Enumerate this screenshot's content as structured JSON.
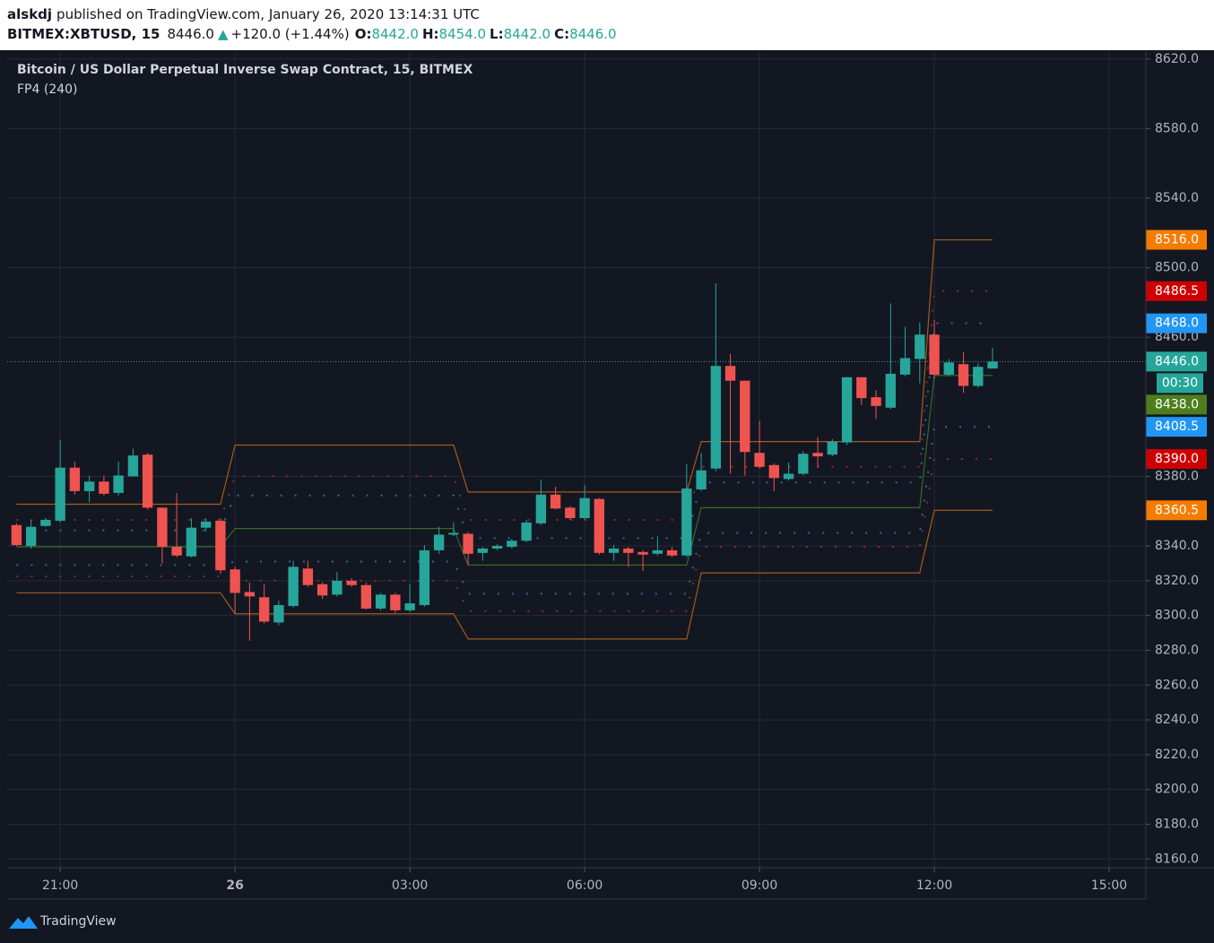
{
  "header": {
    "user": "alskdj",
    "published": "published on TradingView.com, January 26, 2020 13:14:31 UTC",
    "symbol": "BITMEX:XBTUSD, 15",
    "price": "8446.0",
    "arrow": "▲",
    "change": "+120.0 (+1.44%)",
    "o_label": "O:",
    "open": "8442.0",
    "h_label": "H:",
    "high": "8454.0",
    "l_label": "L:",
    "low": "8442.0",
    "c_label": "C:",
    "close": "8446.0"
  },
  "footer": {
    "brand": "TradingView"
  },
  "chart_data": {
    "type": "candlestick",
    "title": "Bitcoin / US Dollar Perpetual Inverse Swap Contract, 15, BITMEX",
    "subtitle": "FP4 (240)",
    "up_color": "#26a69a",
    "down_color": "#ef5350",
    "grid": true,
    "x": [
      20.25,
      20.5,
      20.75,
      21,
      21.25,
      21.5,
      21.75,
      22,
      22.25,
      22.5,
      22.75,
      23,
      23.25,
      23.5,
      23.75,
      24,
      24.25,
      24.5,
      24.75,
      25,
      25.25,
      25.5,
      25.75,
      26,
      26.25,
      26.5,
      26.75,
      27,
      27.25,
      27.5,
      27.75,
      28,
      28.25,
      28.5,
      28.75,
      29,
      29.25,
      29.5,
      29.75,
      30,
      30.25,
      30.5,
      30.75,
      31,
      31.25,
      31.5,
      31.75,
      32,
      32.25,
      32.5,
      32.75,
      33,
      33.25,
      33.5,
      33.75,
      34,
      34.25,
      34.5,
      34.75,
      35,
      35.25,
      35.5,
      35.75,
      36,
      36.25,
      36.5,
      36.75,
      37
    ],
    "open": [
      8352,
      8340,
      8351.5,
      8354.5,
      8385,
      8371.5,
      8377,
      8370.5,
      8380,
      8392.5,
      8362,
      8339.5,
      8334,
      8350.5,
      8354.5,
      8326.5,
      8313.5,
      8310.5,
      8296,
      8305.5,
      8327,
      8318,
      8312,
      8320,
      8317.5,
      8304,
      8312,
      8303,
      8306,
      8337.5,
      8346.5,
      8347,
      8336,
      8338.5,
      8339.5,
      8343,
      8353,
      8369.5,
      8362,
      8356,
      8367,
      8336,
      8338.5,
      8336.5,
      8335.5,
      8337.5,
      8334.5,
      8372.5,
      8384.5,
      8443.5,
      8435,
      8393.5,
      8386.5,
      8378.5,
      8381.5,
      8393.5,
      8392.5,
      8399.5,
      8437,
      8425.5,
      8419.5,
      8438.5,
      8447.5,
      8461.5,
      8438.5,
      8444.5,
      8432,
      8442
    ],
    "high": [
      8353,
      8355,
      8356,
      8401,
      8388.5,
      8380.5,
      8380.5,
      8388.5,
      8396,
      8393.5,
      8362,
      8370.5,
      8356,
      8356,
      8356,
      8328,
      8319,
      8318,
      8308.5,
      8331.5,
      8331.5,
      8319,
      8325,
      8321.5,
      8319,
      8313,
      8313,
      8318,
      8340.5,
      8351,
      8353.5,
      8348,
      8339.5,
      8341,
      8344,
      8355,
      8378,
      8374,
      8363,
      8375,
      8367.5,
      8340.5,
      8339.5,
      8337.5,
      8345.5,
      8339.5,
      8387,
      8393.5,
      8491,
      8450.5,
      8435,
      8412,
      8387.5,
      8388,
      8394.5,
      8402.5,
      8401.5,
      8437,
      8437,
      8429.5,
      8479.5,
      8466,
      8468.5,
      8470,
      8447.5,
      8451.5,
      8445,
      8454
    ],
    "low": [
      8340,
      8338.5,
      8351,
      8353.5,
      8369.5,
      8365,
      8369,
      8369,
      8380,
      8361,
      8330,
      8333.5,
      8333.5,
      8348.5,
      8324,
      8301,
      8285.5,
      8295.5,
      8294.5,
      8304.5,
      8316.5,
      8309.5,
      8311,
      8316.5,
      8303.5,
      8303,
      8301.5,
      8302,
      8305,
      8335.5,
      8345.5,
      8329,
      8331.5,
      8337.5,
      8338.5,
      8342,
      8352,
      8361,
      8355,
      8355,
      8335,
      8331.5,
      8328,
      8325.5,
      8334.5,
      8333.5,
      8333.5,
      8371.5,
      8383,
      8381.5,
      8380.5,
      8384.5,
      8371.5,
      8377.5,
      8380.5,
      8385,
      8391.5,
      8398,
      8421,
      8413,
      8418.5,
      8437.5,
      8433.5,
      8436,
      8437.5,
      8428,
      8431,
      8442
    ],
    "close": [
      8340.5,
      8351,
      8355,
      8385,
      8371.5,
      8377,
      8370,
      8380.5,
      8392,
      8362,
      8339.5,
      8334.5,
      8350.5,
      8354,
      8326,
      8313,
      8311,
      8296.5,
      8306,
      8328,
      8317.5,
      8311.5,
      8320,
      8317.5,
      8304,
      8312,
      8303,
      8307,
      8337.5,
      8346.5,
      8347.5,
      8335.5,
      8338.5,
      8340,
      8343,
      8353.5,
      8369.5,
      8361.5,
      8356,
      8367.5,
      8336,
      8338.5,
      8336,
      8335,
      8337.5,
      8334.5,
      8373,
      8383.5,
      8443.5,
      8435,
      8394,
      8385.5,
      8379,
      8381.5,
      8393,
      8391.5,
      8400,
      8437,
      8425,
      8420.5,
      8439,
      8448,
      8461.5,
      8438.5,
      8445.5,
      8432,
      8443,
      8446
    ],
    "series": [
      {
        "color": "#a65a1c",
        "style": "solid",
        "values": [
          8364,
          8364,
          8364,
          8364,
          8364,
          8364,
          8364,
          8364,
          8364,
          8364,
          8364,
          8364,
          8364,
          8364,
          8364,
          8398,
          8398,
          8398,
          8398,
          8398,
          8398,
          8398,
          8398,
          8398,
          8398,
          8398,
          8398,
          8398,
          8398,
          8398,
          8398,
          8371,
          8371,
          8371,
          8371,
          8371,
          8371,
          8371,
          8371,
          8371,
          8371,
          8371,
          8371,
          8371,
          8371,
          8371,
          8371,
          8400,
          8400,
          8400,
          8400,
          8400,
          8400,
          8400,
          8400,
          8400,
          8400,
          8400,
          8400,
          8400,
          8400,
          8400,
          8400,
          8516,
          8516,
          8516,
          8516,
          8516
        ]
      },
      {
        "color": "#8c2b2b",
        "style": "dotted",
        "values": [
          8355,
          8355,
          8355,
          8355,
          8355,
          8355,
          8355,
          8355,
          8355,
          8355,
          8355,
          8355,
          8355,
          8355,
          8355,
          8380,
          8380,
          8380,
          8380,
          8380,
          8380,
          8380,
          8380,
          8380,
          8380,
          8380,
          8380,
          8380,
          8380,
          8380,
          8380,
          8355,
          8355,
          8355,
          8355,
          8355,
          8355,
          8355,
          8355,
          8355,
          8355,
          8355,
          8355,
          8355,
          8355,
          8355,
          8355,
          8385.5,
          8385.5,
          8385.5,
          8385.5,
          8385.5,
          8385.5,
          8385.5,
          8385.5,
          8385.5,
          8385.5,
          8385.5,
          8385.5,
          8385.5,
          8385.5,
          8385.5,
          8385.5,
          8486.5,
          8486.5,
          8486.5,
          8486.5,
          8486.5
        ]
      },
      {
        "color": "#2b6a9a",
        "style": "dotted",
        "values": [
          8349,
          8349,
          8349,
          8349,
          8349,
          8349,
          8349,
          8349,
          8349,
          8349,
          8349,
          8349,
          8349,
          8349,
          8349,
          8369,
          8369,
          8369,
          8369,
          8369,
          8369,
          8369,
          8369,
          8369,
          8369,
          8369,
          8369,
          8369,
          8369,
          8369,
          8369,
          8344.5,
          8344.5,
          8344.5,
          8344.5,
          8344.5,
          8344.5,
          8344.5,
          8344.5,
          8344.5,
          8344.5,
          8344.5,
          8344.5,
          8344.5,
          8344.5,
          8344.5,
          8344.5,
          8376.5,
          8376.5,
          8376.5,
          8376.5,
          8376.5,
          8376.5,
          8376.5,
          8376.5,
          8376.5,
          8376.5,
          8376.5,
          8376.5,
          8376.5,
          8376.5,
          8376.5,
          8376.5,
          8468,
          8468,
          8468,
          8468,
          8468
        ]
      },
      {
        "color": "#37692a",
        "style": "solid",
        "values": [
          8339.5,
          8339.5,
          8339.5,
          8339.5,
          8339.5,
          8339.5,
          8339.5,
          8339.5,
          8339.5,
          8339.5,
          8339.5,
          8339.5,
          8339.5,
          8339.5,
          8339.5,
          8350,
          8350,
          8350,
          8350,
          8350,
          8350,
          8350,
          8350,
          8350,
          8350,
          8350,
          8350,
          8350,
          8350,
          8350,
          8350,
          8329,
          8329,
          8329,
          8329,
          8329,
          8329,
          8329,
          8329,
          8329,
          8329,
          8329,
          8329,
          8329,
          8329,
          8329,
          8329,
          8362,
          8362,
          8362,
          8362,
          8362,
          8362,
          8362,
          8362,
          8362,
          8362,
          8362,
          8362,
          8362,
          8362,
          8362,
          8362,
          8438,
          8438,
          8438,
          8438,
          8438
        ]
      },
      {
        "color": "#2b6a9a",
        "style": "dotted",
        "values": [
          8329,
          8329,
          8329,
          8329,
          8329,
          8329,
          8329,
          8329,
          8329,
          8329,
          8329,
          8329,
          8329,
          8329,
          8329,
          8331,
          8331,
          8331,
          8331,
          8331,
          8331,
          8331,
          8331,
          8331,
          8331,
          8331,
          8331,
          8331,
          8331,
          8331,
          8331,
          8312.5,
          8312.5,
          8312.5,
          8312.5,
          8312.5,
          8312.5,
          8312.5,
          8312.5,
          8312.5,
          8312.5,
          8312.5,
          8312.5,
          8312.5,
          8312.5,
          8312.5,
          8312.5,
          8347.5,
          8347.5,
          8347.5,
          8347.5,
          8347.5,
          8347.5,
          8347.5,
          8347.5,
          8347.5,
          8347.5,
          8347.5,
          8347.5,
          8347.5,
          8347.5,
          8347.5,
          8347.5,
          8408.5,
          8408.5,
          8408.5,
          8408.5,
          8408.5
        ]
      },
      {
        "color": "#8c2b2b",
        "style": "dotted",
        "values": [
          8322.5,
          8322.5,
          8322.5,
          8322.5,
          8322.5,
          8322.5,
          8322.5,
          8322.5,
          8322.5,
          8322.5,
          8322.5,
          8322.5,
          8322.5,
          8322.5,
          8322.5,
          8320,
          8320,
          8320,
          8320,
          8320,
          8320,
          8320,
          8320,
          8320,
          8320,
          8320,
          8320,
          8320,
          8320,
          8320,
          8320,
          8302.5,
          8302.5,
          8302.5,
          8302.5,
          8302.5,
          8302.5,
          8302.5,
          8302.5,
          8302.5,
          8302.5,
          8302.5,
          8302.5,
          8302.5,
          8302.5,
          8302.5,
          8302.5,
          8339.5,
          8339.5,
          8339.5,
          8339.5,
          8339.5,
          8339.5,
          8339.5,
          8339.5,
          8339.5,
          8339.5,
          8339.5,
          8339.5,
          8339.5,
          8339.5,
          8339.5,
          8339.5,
          8390,
          8390,
          8390,
          8390,
          8390
        ]
      },
      {
        "color": "#a65a1c",
        "style": "solid",
        "values": [
          8313,
          8313,
          8313,
          8313,
          8313,
          8313,
          8313,
          8313,
          8313,
          8313,
          8313,
          8313,
          8313,
          8313,
          8313,
          8301,
          8301,
          8301,
          8301,
          8301,
          8301,
          8301,
          8301,
          8301,
          8301,
          8301,
          8301,
          8301,
          8301,
          8301,
          8301,
          8286.5,
          8286.5,
          8286.5,
          8286.5,
          8286.5,
          8286.5,
          8286.5,
          8286.5,
          8286.5,
          8286.5,
          8286.5,
          8286.5,
          8286.5,
          8286.5,
          8286.5,
          8286.5,
          8324.5,
          8324.5,
          8324.5,
          8324.5,
          8324.5,
          8324.5,
          8324.5,
          8324.5,
          8324.5,
          8324.5,
          8324.5,
          8324.5,
          8324.5,
          8324.5,
          8324.5,
          8324.5,
          8360.5,
          8360.5,
          8360.5,
          8360.5,
          8360.5
        ]
      }
    ],
    "last_price": {
      "value": 8446,
      "label": "8446.0",
      "color": "#26a69a",
      "countdown": "00:30"
    },
    "price_labels": [
      {
        "value": 8516,
        "label": "8516.0",
        "color": "#f57c00"
      },
      {
        "value": 8486.5,
        "label": "8486.5",
        "color": "#cc0000"
      },
      {
        "value": 8468,
        "label": "8468.0",
        "color": "#2196f3"
      },
      {
        "value": 8438,
        "label": "8438.0",
        "color": "#4e7d1e"
      },
      {
        "value": 8408.5,
        "label": "8408.5",
        "color": "#2196f3"
      },
      {
        "value": 8390,
        "label": "8390.0",
        "color": "#cc0000"
      },
      {
        "value": 8360.5,
        "label": "8360.5",
        "color": "#f57c00"
      }
    ],
    "xlim": [
      20.09,
      39.63
    ],
    "xticks": [
      {
        "value": 21,
        "label": "21:00"
      },
      {
        "value": 24,
        "label": "26",
        "bold": true
      },
      {
        "value": 27,
        "label": "03:00"
      },
      {
        "value": 30,
        "label": "06:00"
      },
      {
        "value": 33,
        "label": "09:00"
      },
      {
        "value": 36,
        "label": "12:00"
      },
      {
        "value": 39,
        "label": "15:00"
      }
    ],
    "ylim": [
      8155,
      8624
    ],
    "yticks": [
      {
        "value": 8620,
        "label": "8620.0"
      },
      {
        "value": 8580,
        "label": "8580.0"
      },
      {
        "value": 8540,
        "label": "8540.0"
      },
      {
        "value": 8500,
        "label": "8500.0"
      },
      {
        "value": 8460,
        "label": "8460.0"
      },
      {
        "value": 8380,
        "label": "8380.0"
      },
      {
        "value": 8340,
        "label": "8340.0"
      },
      {
        "value": 8320,
        "label": "8320.0"
      },
      {
        "value": 8300,
        "label": "8300.0"
      },
      {
        "value": 8280,
        "label": "8280.0"
      },
      {
        "value": 8260,
        "label": "8260.0"
      },
      {
        "value": 8240,
        "label": "8240.0"
      },
      {
        "value": 8220,
        "label": "8220.0"
      },
      {
        "value": 8200,
        "label": "8200.0"
      },
      {
        "value": 8180,
        "label": "8180.0"
      },
      {
        "value": 8160,
        "label": "8160.0"
      }
    ]
  }
}
